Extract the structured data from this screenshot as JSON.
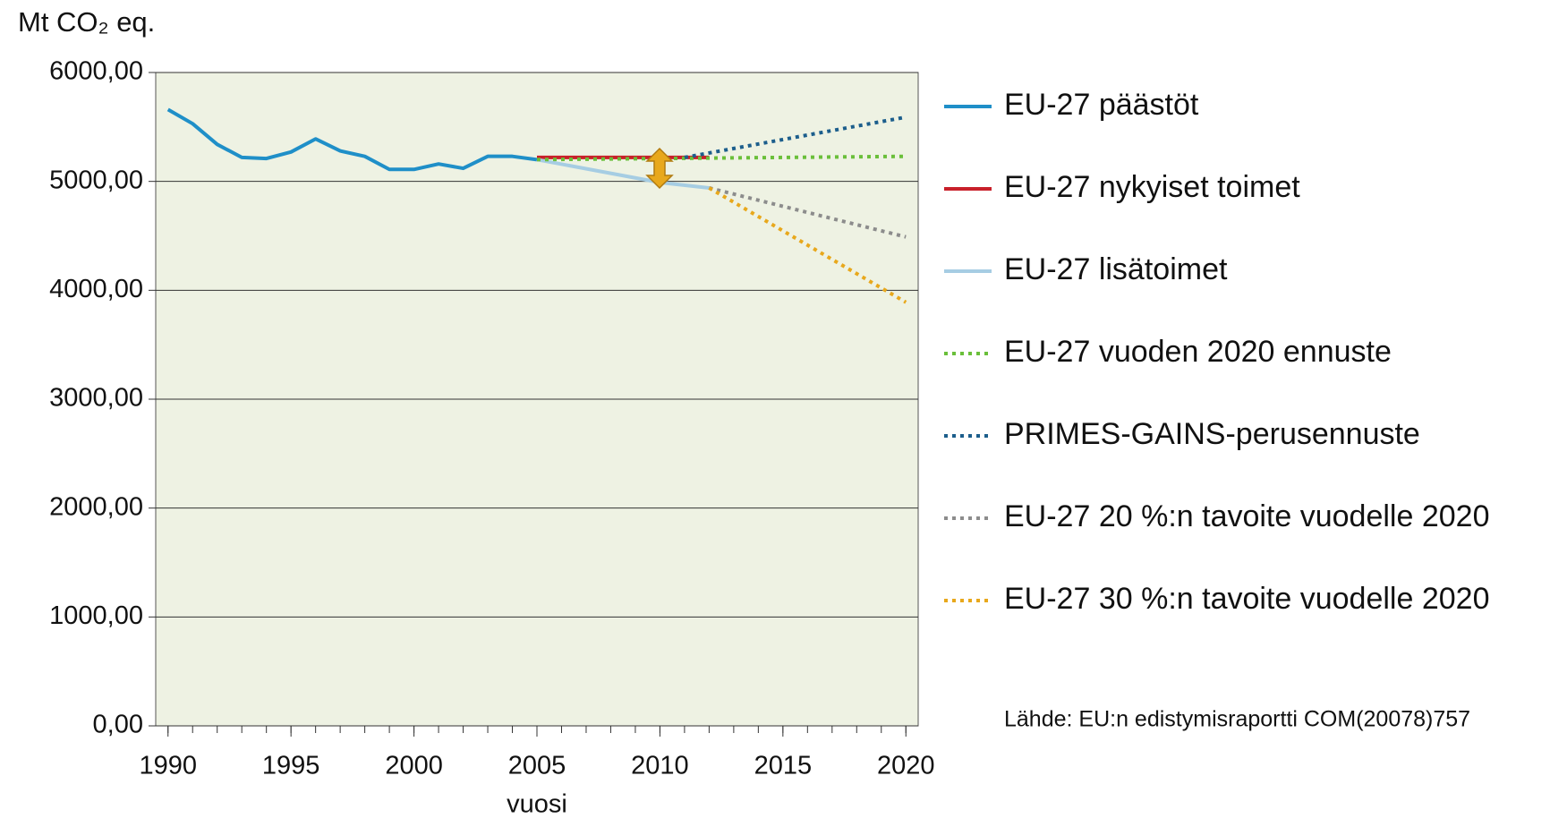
{
  "chart_data": {
    "type": "line",
    "y_label": "Mt CO₂ eq.",
    "x_label": "vuosi",
    "source": "Lähde: EU:n edistymisraportti COM(20078)757",
    "xlim": [
      1989.5,
      2020.5
    ],
    "xticks": [
      1990,
      1995,
      2000,
      2005,
      2010,
      2015,
      2020
    ],
    "ylim": [
      0,
      6000
    ],
    "yticks": [
      {
        "value": 0,
        "label": "0,00"
      },
      {
        "value": 1000,
        "label": "1000,00"
      },
      {
        "value": 2000,
        "label": "2000,00"
      },
      {
        "value": 3000,
        "label": "3000,00"
      },
      {
        "value": 4000,
        "label": "4000,00"
      },
      {
        "value": 5000,
        "label": "5000,00"
      },
      {
        "value": 6000,
        "label": "6000,00"
      }
    ],
    "grid": true,
    "legend": "right",
    "series": [
      {
        "name": "EU-27 päästöt",
        "color": "#1f8fc8",
        "linestyle": "solid",
        "x": [
          1990,
          1991,
          1992,
          1993,
          1994,
          1995,
          1996,
          1997,
          1998,
          1999,
          2000,
          2001,
          2002,
          2003,
          2004,
          2005
        ],
        "values": [
          5660,
          5530,
          5340,
          5220,
          5210,
          5270,
          5390,
          5280,
          5230,
          5110,
          5110,
          5160,
          5120,
          5230,
          5230,
          5200
        ]
      },
      {
        "name": "EU-27 nykyiset toimet",
        "color": "#c8202a",
        "linestyle": "solid",
        "x": [
          2005,
          2012
        ],
        "values": [
          5220,
          5220
        ]
      },
      {
        "name": "EU-27 lisätoimet",
        "color": "#a6cde3",
        "linestyle": "solid",
        "x": [
          2005,
          2010,
          2012
        ],
        "values": [
          5200,
          4990,
          4940
        ]
      },
      {
        "name": "EU-27 vuoden 2020 ennuste",
        "color": "#6abf3a",
        "linestyle": "dotted",
        "x": [
          2005,
          2020
        ],
        "values": [
          5200,
          5230
        ]
      },
      {
        "name": "PRIMES-GAINS-perusennuste",
        "color": "#1c5e8c",
        "linestyle": "dotted",
        "x": [
          2011,
          2020
        ],
        "values": [
          5220,
          5590
        ]
      },
      {
        "name": "EU-27 20 %:n tavoite vuodelle 2020",
        "color": "#8c8c8c",
        "linestyle": "dotted",
        "x": [
          2012,
          2020
        ],
        "values": [
          4940,
          4490
        ]
      },
      {
        "name": "EU-27 30 %:n tavoite vuodelle 2020",
        "color": "#e8a81c",
        "linestyle": "dotted",
        "x": [
          2012,
          2020
        ],
        "values": [
          4940,
          3890
        ]
      }
    ]
  }
}
